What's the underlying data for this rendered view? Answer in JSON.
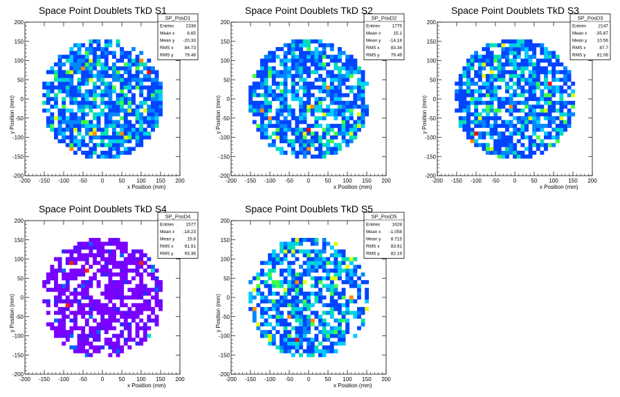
{
  "chart_data": [
    {
      "type": "heatmap",
      "title": "Space Point Doublets TkD S1",
      "xlabel": "x Position (mm)",
      "ylabel": "y Position (mm)",
      "xlim": [
        -200,
        200
      ],
      "ylim": [
        -200,
        200
      ],
      "xticks": [
        "-200",
        "-150",
        "-100",
        "-50",
        "0",
        "50",
        "100",
        "150",
        "200"
      ],
      "yticks": [
        "-200",
        "-150",
        "-100",
        "-50",
        "0",
        "50",
        "100",
        "150",
        "200"
      ],
      "palette": "blue-heavy",
      "seed": 11,
      "stats": {
        "name": "SP_PosD1",
        "rows": [
          {
            "label": "Entries",
            "value": "2338"
          },
          {
            "label": "Mean x",
            "value": "6.65"
          },
          {
            "label": "Mean y",
            "value": "-20.33"
          },
          {
            "label": "RMS x",
            "value": "84.73"
          },
          {
            "label": "RMS y",
            "value": "79.48"
          }
        ]
      }
    },
    {
      "type": "heatmap",
      "title": "Space Point Doublets TkD S2",
      "xlabel": "x Position (mm)",
      "ylabel": "y Position (mm)",
      "xlim": [
        -200,
        200
      ],
      "ylim": [
        -200,
        200
      ],
      "xticks": [
        "-200",
        "-150",
        "-100",
        "-50",
        "0",
        "50",
        "100",
        "150",
        "200"
      ],
      "yticks": [
        "-200",
        "-150",
        "-100",
        "-50",
        "0",
        "50",
        "100",
        "150",
        "200"
      ],
      "palette": "blue-heavy",
      "seed": 23,
      "stats": {
        "name": "SP_PosD2",
        "rows": [
          {
            "label": "Entries",
            "value": "1775"
          },
          {
            "label": "Mean x",
            "value": "15.1"
          },
          {
            "label": "Mean y",
            "value": "-14.18"
          },
          {
            "label": "RMS x",
            "value": "83.34"
          },
          {
            "label": "RMS y",
            "value": "79.49"
          }
        ]
      }
    },
    {
      "type": "heatmap",
      "title": "Space Point Doublets TkD S3",
      "xlabel": "x Position (mm)",
      "ylabel": "y Position (mm)",
      "xlim": [
        -200,
        200
      ],
      "ylim": [
        -200,
        200
      ],
      "xticks": [
        "-200",
        "-150",
        "-100",
        "-50",
        "0",
        "50",
        "100",
        "150",
        "200"
      ],
      "yticks": [
        "-200",
        "-150",
        "-100",
        "-50",
        "0",
        "50",
        "100",
        "150",
        "200"
      ],
      "palette": "blue-heavy",
      "seed": 37,
      "stats": {
        "name": "SP_PosD3",
        "rows": [
          {
            "label": "Entries",
            "value": "2147"
          },
          {
            "label": "Mean x",
            "value": "-35.87"
          },
          {
            "label": "Mean y",
            "value": "10.56"
          },
          {
            "label": "RMS x",
            "value": "87.7"
          },
          {
            "label": "RMS y",
            "value": "81.06"
          }
        ]
      }
    },
    {
      "type": "heatmap",
      "title": "Space Point Doublets TkD S4",
      "xlabel": "x Position (mm)",
      "ylabel": "y Position (mm)",
      "xlim": [
        -200,
        200
      ],
      "ylim": [
        -200,
        200
      ],
      "xticks": [
        "-200",
        "-150",
        "-100",
        "-50",
        "0",
        "50",
        "100",
        "150",
        "200"
      ],
      "yticks": [
        "-200",
        "-150",
        "-100",
        "-50",
        "0",
        "50",
        "100",
        "150",
        "200"
      ],
      "palette": "violet-heavy",
      "seed": 53,
      "stats": {
        "name": "SP_PosD4",
        "rows": [
          {
            "label": "Entries",
            "value": "1577"
          },
          {
            "label": "Mean x",
            "value": "-18.23"
          },
          {
            "label": "Mean y",
            "value": "15.8"
          },
          {
            "label": "RMS x",
            "value": "81.91"
          },
          {
            "label": "RMS y",
            "value": "93.36"
          }
        ]
      }
    },
    {
      "type": "heatmap",
      "title": "Space Point Doublets TkD S5",
      "xlabel": "x Position (mm)",
      "ylabel": "y Position (mm)",
      "xlim": [
        -200,
        200
      ],
      "ylim": [
        -200,
        200
      ],
      "xticks": [
        "-200",
        "-150",
        "-100",
        "-50",
        "0",
        "50",
        "100",
        "150",
        "200"
      ],
      "yticks": [
        "-200",
        "-150",
        "-100",
        "-50",
        "0",
        "50",
        "100",
        "150",
        "200"
      ],
      "palette": "sparse-mixed",
      "seed": 71,
      "stats": {
        "name": "SP_PosD5",
        "rows": [
          {
            "label": "Entries",
            "value": "1628"
          },
          {
            "label": "Mean x",
            "value": "-1.058"
          },
          {
            "label": "Mean y",
            "value": "8.715"
          },
          {
            "label": "RMS x",
            "value": "83.91"
          },
          {
            "label": "RMS y",
            "value": "82.19"
          }
        ]
      }
    }
  ],
  "colors": {
    "frame": "#000000",
    "stat_fill": "#ffffff",
    "scale": [
      "#1a00ff",
      "#0044ff",
      "#0088ff",
      "#00ccff",
      "#00e0b0",
      "#40ff40",
      "#e0ff00",
      "#ff8800",
      "#ff0000"
    ],
    "violet_scale": [
      "#7a00ff",
      "#5a10ff",
      "#2a2aff",
      "#0066ff",
      "#00aaff",
      "#00ddcc",
      "#60ff40",
      "#ff2200"
    ]
  }
}
